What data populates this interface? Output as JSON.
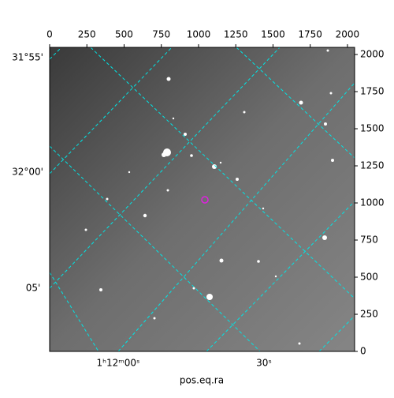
{
  "chart_data": {
    "type": "image",
    "xlabel": "pos.eq.ra",
    "xlim": [
      0,
      2048
    ],
    "ylim": [
      0,
      2048
    ],
    "xticks": [
      0,
      250,
      500,
      750,
      1000,
      1250,
      1500,
      1750,
      2000
    ],
    "yticks": [
      0,
      250,
      500,
      750,
      1000,
      1250,
      1500,
      1750,
      2000
    ],
    "ra_labels": [
      "1ʰ12ᵐ00ˢ",
      "30ˢ"
    ],
    "dec_labels": [
      "31°55'",
      "32°00'",
      "05'"
    ],
    "grid_color": "#00e5e5"
  }
}
